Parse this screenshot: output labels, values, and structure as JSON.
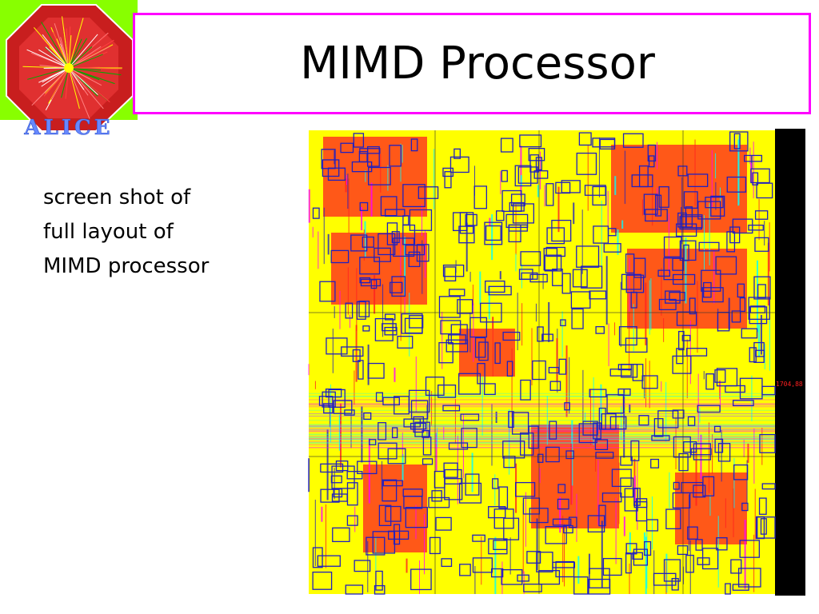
{
  "slide": {
    "title": "MIMD Processor",
    "body_lines": [
      "screen shot of",
      "full layout of",
      "MIMD processor"
    ]
  },
  "logo": {
    "text": "ALICE",
    "colors": {
      "background": "#88ff00",
      "octagon": "#cc2222",
      "lettering": "#6688ff"
    }
  },
  "layout_image": {
    "scale_label": "1704,88",
    "colors": {
      "yellow": "#ffff00",
      "red": "#ff2020",
      "magenta": "#ff00ff",
      "blue": "#2020c0",
      "cyan": "#00ffff",
      "black": "#000000"
    }
  },
  "colors": {
    "title_border": "#ff00ff",
    "text": "#000000",
    "background": "#ffffff"
  }
}
